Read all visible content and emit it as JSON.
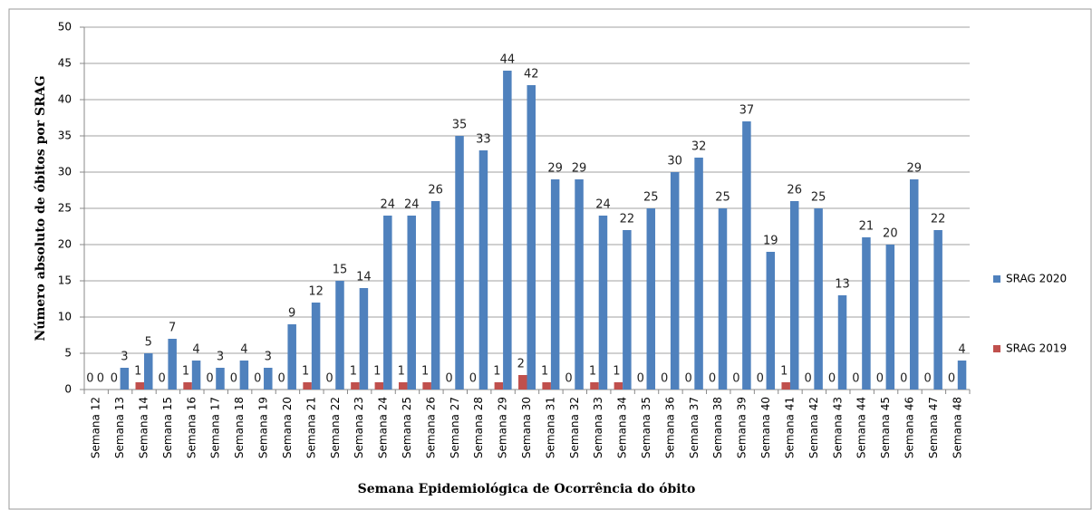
{
  "chart_data": {
    "type": "bar",
    "xlabel": "Semana Epidemiológica de Ocorrência do óbito",
    "ylabel": "Número absoluto de óbitos por SRAG",
    "categories": [
      "Semana 12",
      "Semana 13",
      "Semana 14",
      "Semana 15",
      "Semana 16",
      "Semana 17",
      "Semana 18",
      "Semana 19",
      "Semana 20",
      "Semana 21",
      "Semana 22",
      "Semana 23",
      "Semana 24",
      "Semana 25",
      "Semana 26",
      "Semana 27",
      "Semana 28",
      "Semana 29",
      "Semana 30",
      "Semana 31",
      "Semana 32",
      "Semana 33",
      "Semana 34",
      "Semana 35",
      "Semana 36",
      "Semana 37",
      "Semana 38",
      "Semana 39",
      "Semana 40",
      "Semana 41",
      "Semana 42",
      "Semana 43",
      "Semana 44",
      "Semana 45",
      "Semana 46",
      "Semana 47",
      "Semana 48"
    ],
    "series": [
      {
        "name": "SRAG 2019",
        "color": "#c0504d",
        "values": [
          0,
          0,
          1,
          0,
          1,
          0,
          0,
          0,
          0,
          1,
          0,
          1,
          1,
          1,
          1,
          0,
          0,
          1,
          2,
          1,
          0,
          1,
          1,
          0,
          0,
          0,
          0,
          0,
          0,
          1,
          0,
          0,
          0,
          0,
          0,
          0,
          0
        ]
      },
      {
        "name": "SRAG 2020",
        "color": "#4f81bd",
        "values": [
          0,
          3,
          5,
          7,
          4,
          3,
          4,
          3,
          9,
          12,
          15,
          14,
          24,
          24,
          26,
          35,
          33,
          44,
          42,
          29,
          29,
          24,
          22,
          25,
          30,
          32,
          25,
          37,
          19,
          26,
          25,
          13,
          21,
          20,
          29,
          22,
          4
        ]
      }
    ],
    "ylim": [
      0,
      50
    ],
    "yticks": [
      0,
      5,
      10,
      15,
      20,
      25,
      30,
      35,
      40,
      45,
      50
    ],
    "grid": true,
    "legend": "right"
  }
}
